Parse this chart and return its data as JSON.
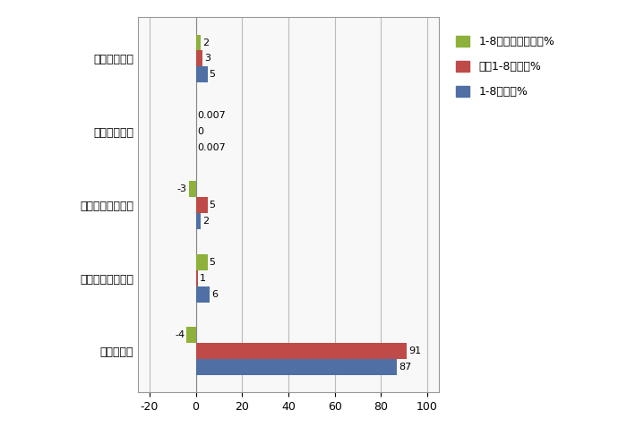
{
  "categories": [
    "纯电动轻卡",
    "柴油混合动力轻卡",
    "汽油混合动力轻卡",
    "甲醇混合动力",
    "燃料电池轻卡"
  ],
  "series": {
    "1-8月占比同比增减%": [
      -4,
      5,
      -3,
      0.007,
      2
    ],
    "去年1-8月占比%": [
      91,
      1,
      5,
      0,
      3
    ],
    "1-8月占比%": [
      87,
      6,
      2,
      0.007,
      5
    ]
  },
  "colors": {
    "1-8月占比同比增减%": "#8DB13B",
    "去年1-8月占比%": "#BE4B48",
    "1-8月占比%": "#4F6FA5"
  },
  "xlim": [
    -25,
    105
  ],
  "xticks": [
    -20,
    0,
    20,
    40,
    60,
    80,
    100
  ],
  "bar_height": 0.22,
  "legend_labels": [
    "1-8月占比同比增减%",
    "去年1-8月占比%",
    "1-8月占比%"
  ],
  "grid_color": "#BBBBBB",
  "bg_color": "#FFFFFF",
  "plot_bg_color": "#F8F8F8",
  "value_labels": {
    "1-8月占比同比增减%": [
      "-4",
      "5",
      "-3",
      "0.007",
      "2"
    ],
    "去年1-8月占比%": [
      "91",
      "1",
      "5",
      "0",
      "3"
    ],
    "1-8月占比%": [
      "87",
      "6",
      "2",
      "0.007",
      "5"
    ]
  },
  "figsize": [
    7.0,
    4.87
  ],
  "dpi": 100
}
